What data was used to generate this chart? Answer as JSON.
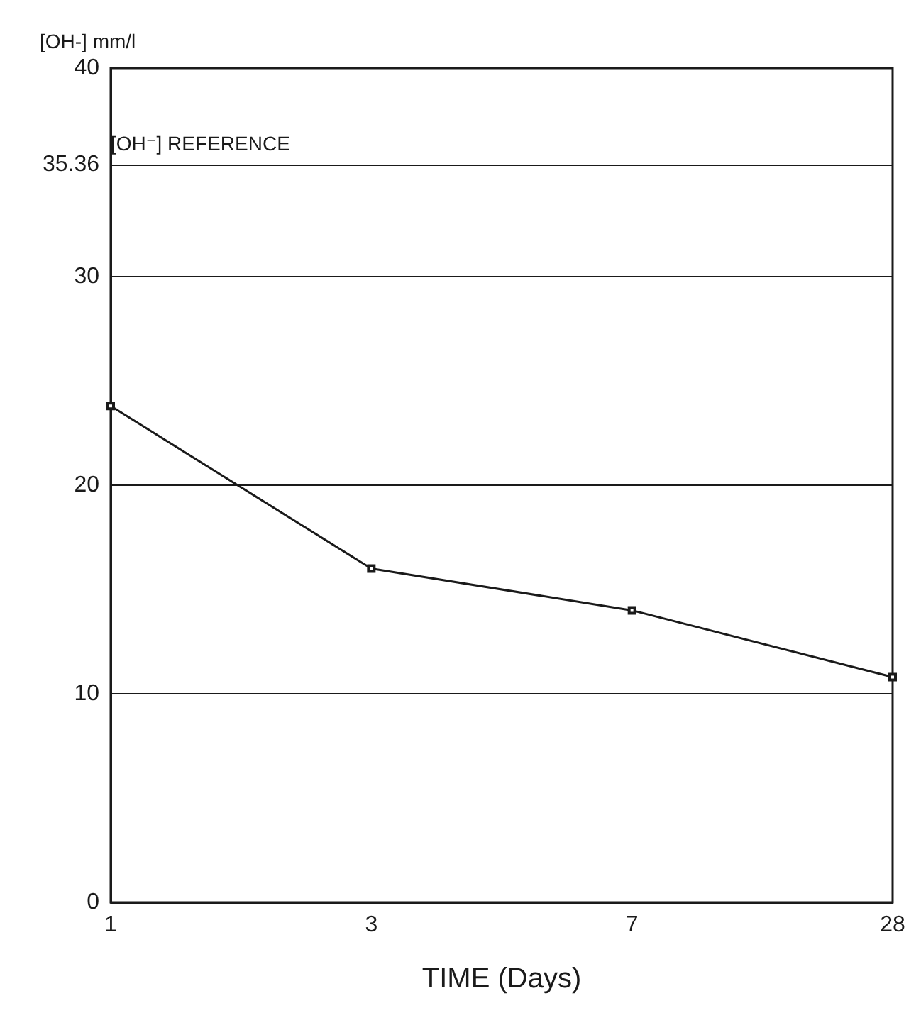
{
  "chart_data": {
    "type": "line",
    "xlabel": "TIME (Days)",
    "ylabel": "[OH-] mm/l",
    "categories": [
      "1",
      "3",
      "7",
      "28"
    ],
    "series": [
      {
        "color": "#1a1a1a",
        "values": [
          23.8,
          16.0,
          14.0,
          10.8
        ]
      }
    ],
    "ylim": [
      0,
      40
    ],
    "yticks": [
      0,
      10,
      20,
      30,
      35.36,
      40
    ],
    "grid": "y",
    "marker": "square",
    "line_style": "solid",
    "ref_lines": [
      {
        "axis": "y",
        "value": 35.36,
        "label": "[OH⁻] REFERENCE",
        "color": "#1a1a1a"
      }
    ]
  }
}
